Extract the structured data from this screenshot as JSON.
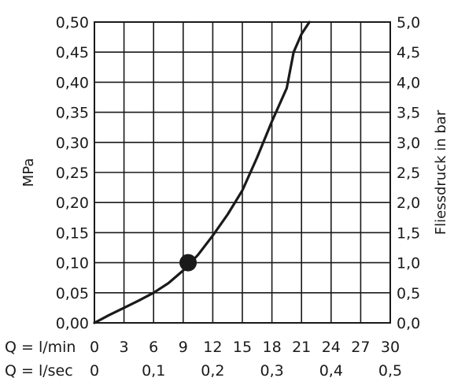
{
  "chart_data": {
    "type": "line",
    "title": "",
    "ylabel_left": "MPa",
    "ylabel_right": "Fliessdruck in bar",
    "x_axis_rows": [
      {
        "prefix": "Q = l/min",
        "ticks": [
          "0",
          "3",
          "6",
          "9",
          "12",
          "15",
          "18",
          "21",
          "24",
          "27",
          "30"
        ],
        "values": [
          0,
          3,
          6,
          9,
          12,
          15,
          18,
          21,
          24,
          27,
          30
        ]
      },
      {
        "prefix": "Q = l/sec",
        "ticks": [
          "0",
          "0,1",
          "0,2",
          "0,3",
          "0,4",
          "0,5"
        ],
        "values": [
          0,
          6,
          12,
          18,
          24,
          30
        ]
      }
    ],
    "xlim": [
      0,
      30
    ],
    "ylim": [
      0,
      0.5
    ],
    "y_left_ticks": [
      "0,00",
      "0,05",
      "0,10",
      "0,15",
      "0,20",
      "0,25",
      "0,30",
      "0,35",
      "0,40",
      "0,45",
      "0,50"
    ],
    "y_left_values": [
      0,
      0.05,
      0.1,
      0.15,
      0.2,
      0.25,
      0.3,
      0.35,
      0.4,
      0.45,
      0.5
    ],
    "y_right_ticks": [
      "0,0",
      "0,5",
      "1,0",
      "1,5",
      "2,0",
      "2,5",
      "3,0",
      "3,5",
      "4,0",
      "4,5",
      "5,0"
    ],
    "grid": true,
    "series": [
      {
        "x": [
          0,
          1.5,
          3,
          4.5,
          6,
          7.5,
          9,
          10.5,
          12,
          13.5,
          15,
          16.5,
          18,
          19.5,
          20.2,
          21,
          21.8
        ],
        "y": [
          0,
          0.013,
          0.025,
          0.037,
          0.05,
          0.066,
          0.087,
          0.113,
          0.145,
          0.18,
          0.22,
          0.275,
          0.335,
          0.39,
          0.45,
          0.48,
          0.5
        ]
      }
    ],
    "marker_point": {
      "x": 9.5,
      "y": 0.1
    }
  }
}
